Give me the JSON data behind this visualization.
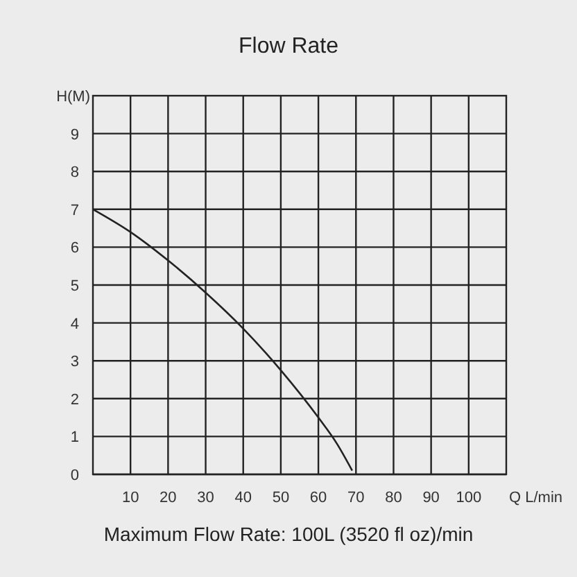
{
  "chart_data": {
    "type": "line",
    "title": "Flow Rate",
    "xlabel": "Q L/min",
    "ylabel": "H(M)",
    "annotations": [
      "Maximum Flow Rate: 100L (3520 fl oz)/min"
    ],
    "x": [
      0,
      10,
      20,
      30,
      40,
      50,
      60,
      65,
      69
    ],
    "series": [
      {
        "color": "#222222",
        "values": [
          7,
          6.4,
          5.65,
          4.8,
          3.85,
          2.75,
          1.5,
          0.8,
          0.1
        ]
      }
    ],
    "xlim": [
      0,
      110
    ],
    "xticks": [
      10,
      20,
      30,
      40,
      50,
      60,
      70,
      80,
      90,
      100
    ],
    "ylim": [
      0,
      10
    ],
    "yticks": [
      0,
      1,
      2,
      3,
      4,
      5,
      6,
      7,
      8,
      9
    ],
    "grid": true,
    "marker": "none",
    "line_style": "solid"
  }
}
